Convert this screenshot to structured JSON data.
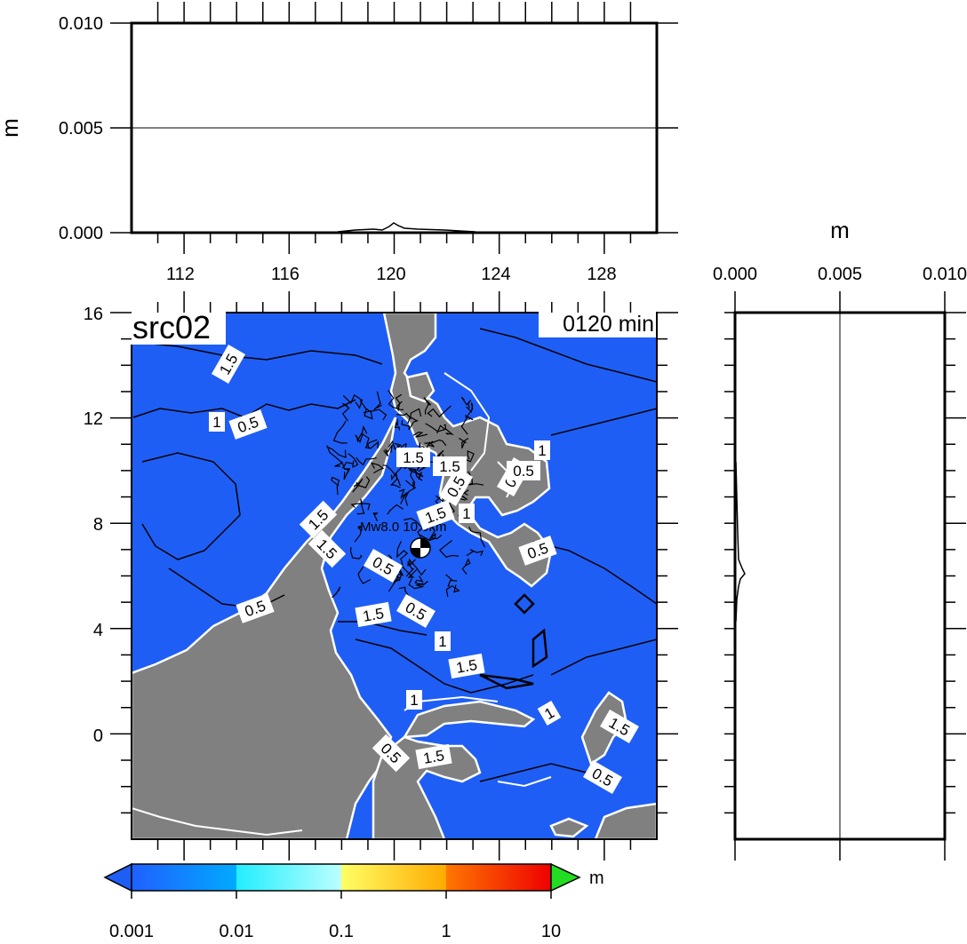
{
  "map": {
    "title": "src02",
    "time_label": "0120 min",
    "epicenter_label": "Mw8.0 10.0km",
    "lon_ticks": [
      "112",
      "116",
      "120",
      "124",
      "128"
    ],
    "lat_ticks": [
      "16",
      "12",
      "8",
      "4",
      "0"
    ],
    "contour_labels": [
      "1.5",
      "1",
      "0.5",
      "1.5",
      "1.5",
      "0.5",
      "1",
      "0.5",
      "1.5",
      "0.5",
      "1.5",
      "0.5",
      "1.5",
      "0.5",
      "1",
      "1.5",
      "1",
      "1",
      "0.5",
      "1.5",
      "0.5",
      "1.5",
      "1.5",
      "0.5",
      "1",
      "0.5"
    ],
    "colors": {
      "sea": "#1f5ef5",
      "land": "#808080",
      "contour_white": "#ffffff",
      "contour_black": "#000000"
    }
  },
  "top_profile": {
    "unit": "m",
    "y_ticks": [
      "0.010",
      "0.005",
      "0.000"
    ],
    "profile_x": [
      118,
      119,
      119.5,
      120,
      120.2,
      120.5,
      121,
      122,
      123
    ],
    "profile_y": [
      0.0,
      0.0001,
      0.0002,
      0.0003,
      0.0005,
      0.0002,
      0.0001,
      5e-05,
      0.0
    ]
  },
  "right_profile": {
    "unit": "m",
    "x_ticks": [
      "0.000",
      "0.005",
      "0.010"
    ],
    "profile_lat": [
      10,
      8,
      7,
      6.2,
      6.0,
      5.5,
      5.0,
      4.5
    ],
    "profile_val": [
      5e-05,
      0.0001,
      0.0002,
      0.0005,
      0.0003,
      0.0002,
      0.0001,
      0.0
    ]
  },
  "colorbar": {
    "unit": "m",
    "labels": [
      "0.001",
      "0.01",
      "0.1",
      "1",
      "10"
    ],
    "colors": [
      "#1f5ef5",
      "#00c8ff",
      "#33ffff",
      "#ffff55",
      "#ff7700",
      "#ee0000",
      "#22dd22"
    ]
  }
}
